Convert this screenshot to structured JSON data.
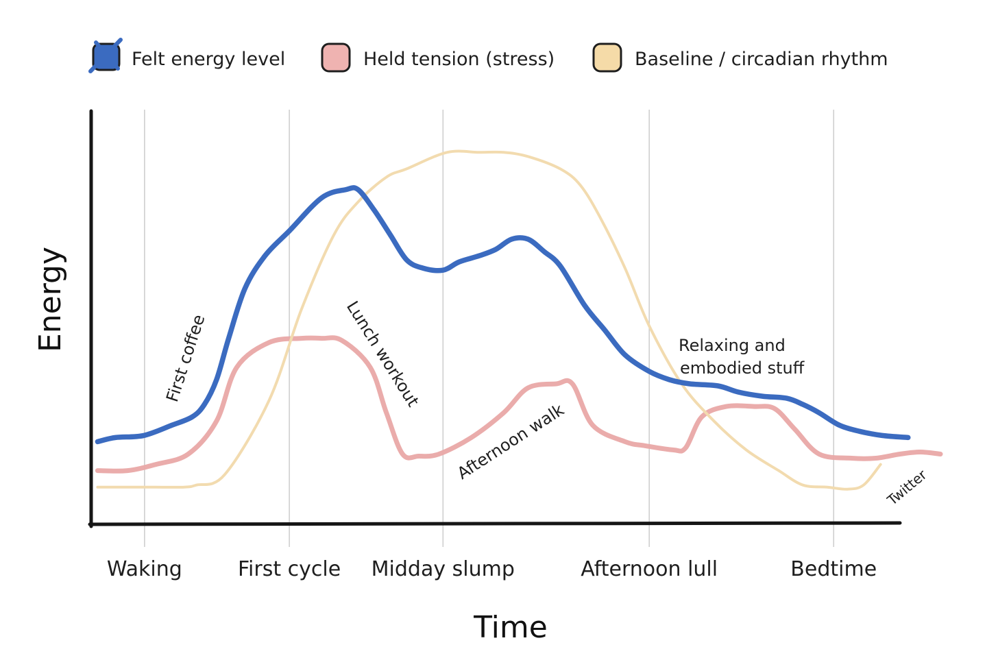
{
  "chart_data": {
    "type": "line",
    "title": "",
    "xlabel": "Time",
    "ylabel": "Energy",
    "xlim": [
      0,
      100
    ],
    "ylim": [
      0,
      100
    ],
    "grid": "vertical",
    "legend_position": "top",
    "categories": [
      {
        "label": "Waking",
        "x": 6.6
      },
      {
        "label": "First cycle",
        "x": 24.5
      },
      {
        "label": "Midday slump",
        "x": 43.5
      },
      {
        "label": "Afternoon lull",
        "x": 69.0
      },
      {
        "label": "Bedtime",
        "x": 91.8
      }
    ],
    "series": [
      {
        "name": "Held tension (stress)",
        "color": "#e9a8a6",
        "x": [
          0.8,
          4.5,
          8.0,
          12.0,
          15.5,
          18.0,
          22.0,
          26.0,
          28.5,
          31.0,
          34.5,
          36.5,
          38.5,
          40.5,
          43.0,
          47.0,
          51.0,
          54.0,
          57.5,
          59.5,
          62.0,
          66.0,
          68.5,
          72.0,
          73.5,
          75.5,
          78.5,
          82.0,
          84.5,
          87.0,
          90.0,
          94.0,
          97.0,
          100.0,
          102.5,
          105.0
        ],
        "y": [
          13,
          13,
          14.5,
          17,
          25,
          38,
          44,
          45,
          45,
          44.5,
          38,
          27,
          17,
          16.5,
          17,
          21,
          27,
          33,
          34,
          34,
          24,
          20,
          19,
          18,
          18.5,
          26,
          28.5,
          28.5,
          28,
          23,
          17,
          16,
          16,
          17,
          17.5,
          17
        ]
      },
      {
        "name": "Baseline / circadian rhythm",
        "color": "#f2dbaf",
        "x": [
          0.8,
          4.0,
          8.0,
          11.5,
          13.0,
          16.5,
          22.0,
          26.0,
          30.0,
          33.0,
          36.5,
          39.0,
          44.0,
          48.0,
          51.0,
          54.0,
          58.0,
          60.5,
          63.0,
          66.0,
          69.0,
          73.0,
          77.0,
          81.0,
          85.0,
          88.0,
          91.0,
          93.5,
          95.5,
          97.6
        ],
        "y": [
          9,
          9,
          9,
          9,
          9.5,
          12,
          30,
          52,
          70,
          78,
          84,
          86,
          90,
          90,
          90,
          89,
          86,
          82,
          74,
          62,
          48,
          34,
          25,
          18,
          13,
          9.5,
          9,
          8.5,
          9.5,
          14.5
        ]
      },
      {
        "name": "Felt energy level",
        "color": "#3b6bc0",
        "x": [
          0.8,
          3.0,
          6.5,
          10.0,
          12.5,
          14.0,
          15.5,
          17.0,
          19.0,
          21.5,
          24.5,
          28.5,
          31.5,
          33.0,
          35.0,
          37.0,
          39.0,
          41.0,
          43.5,
          45.5,
          48.0,
          50.0,
          52.0,
          54.0,
          56.0,
          58.0,
          61.0,
          63.5,
          66.0,
          69.0,
          71.5,
          74.0,
          77.5,
          80.0,
          83.0,
          86.0,
          88.0,
          90.0,
          92.5,
          95.0,
          97.8,
          101.0
        ],
        "y": [
          20,
          21,
          21.5,
          24,
          26,
          29,
          35,
          45,
          57,
          65,
          71,
          79,
          81,
          81,
          76,
          70,
          64,
          62,
          61.5,
          63.5,
          65,
          66.5,
          69,
          69,
          66,
          62.5,
          53,
          47,
          41,
          37,
          35,
          34,
          33.5,
          32,
          31,
          30.5,
          29,
          27,
          24,
          22.5,
          21.5,
          21
        ]
      }
    ],
    "annotations": [
      {
        "text": "First coffee"
      },
      {
        "text": "Lunch workout"
      },
      {
        "text": "Afternoon walk"
      },
      {
        "text": "Relaxing and"
      },
      {
        "text": "embodied stuff"
      },
      {
        "text": "Twitter"
      }
    ]
  },
  "legend": [
    {
      "label": "Felt energy level",
      "color": "#3b6bc0",
      "icon": "scribble-filled-swatch"
    },
    {
      "label": "Held tension (stress)",
      "color": "#efb3b1",
      "icon": "outlined-swatch"
    },
    {
      "label": "Baseline / circadian rhythm",
      "color": "#f5dba8",
      "icon": "outlined-swatch"
    }
  ]
}
